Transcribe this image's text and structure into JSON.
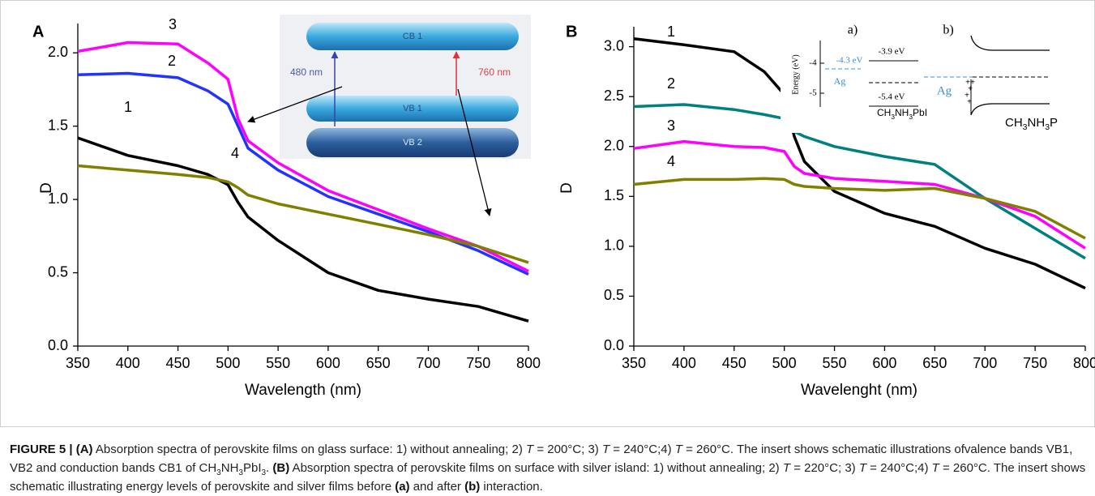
{
  "chart_data": [
    {
      "type": "line",
      "panel": "A",
      "xlabel": "Wavelength (nm)",
      "ylabel": "D",
      "x": [
        350,
        400,
        450,
        480,
        500,
        510,
        520,
        550,
        600,
        650,
        700,
        750,
        800
      ],
      "xlim": [
        350,
        800
      ],
      "xticks": [
        350,
        400,
        450,
        500,
        550,
        600,
        650,
        700,
        750,
        800
      ],
      "ylim": [
        0,
        2.2
      ],
      "yticks": [
        {
          "value": 0,
          "label": "0.0"
        },
        {
          "value": 0.5,
          "label": "0.5"
        },
        {
          "value": 1,
          "label": "1.0"
        },
        {
          "value": 1.5,
          "label": "1.5"
        },
        {
          "value": 2,
          "label": "2.0"
        }
      ],
      "series": [
        {
          "name": "1",
          "color": "#000000",
          "values": [
            1.42,
            1.3,
            1.23,
            1.17,
            1.1,
            0.98,
            0.88,
            0.72,
            0.5,
            0.38,
            0.32,
            0.27,
            0.17
          ]
        },
        {
          "name": "2",
          "color": "#2233ff",
          "values": [
            1.85,
            1.86,
            1.83,
            1.74,
            1.65,
            1.5,
            1.35,
            1.2,
            1.02,
            0.9,
            0.78,
            0.65,
            0.49
          ]
        },
        {
          "name": "3",
          "color": "#ff00ff",
          "values": [
            2.01,
            2.07,
            2.06,
            1.93,
            1.82,
            1.55,
            1.4,
            1.25,
            1.06,
            0.93,
            0.8,
            0.68,
            0.51
          ]
        },
        {
          "name": "4",
          "color": "#808000",
          "values": [
            1.23,
            1.2,
            1.17,
            1.15,
            1.12,
            1.08,
            1.03,
            0.97,
            0.9,
            0.83,
            0.76,
            0.68,
            0.57
          ]
        }
      ],
      "inset_texts": [
        "CB 1",
        "VB 1",
        "VB 2",
        "480 nm",
        "760 nm"
      ]
    },
    {
      "type": "line",
      "panel": "B",
      "xlabel": "Wavelenght (nm)",
      "ylabel": "D",
      "x": [
        350,
        400,
        450,
        480,
        500,
        510,
        520,
        550,
        600,
        650,
        700,
        750,
        800
      ],
      "xlim": [
        350,
        800
      ],
      "xticks": [
        350,
        400,
        450,
        500,
        550,
        600,
        650,
        700,
        750,
        800
      ],
      "ylim": [
        0,
        3.2
      ],
      "yticks": [
        {
          "value": 0,
          "label": "0.0"
        },
        {
          "value": 0.5,
          "label": "0.5"
        },
        {
          "value": 1,
          "label": "1.0"
        },
        {
          "value": 1.5,
          "label": "1.5"
        },
        {
          "value": 2,
          "label": "2.0"
        },
        {
          "value": 2.5,
          "label": "2.5"
        },
        {
          "value": 3,
          "label": "3.0"
        }
      ],
      "series": [
        {
          "name": "1",
          "color": "#000000",
          "values": [
            3.08,
            3.02,
            2.95,
            2.75,
            2.52,
            2.1,
            1.85,
            1.55,
            1.33,
            1.2,
            0.98,
            0.82,
            0.58
          ]
        },
        {
          "name": "2",
          "color": "#008080",
          "values": [
            2.4,
            2.42,
            2.37,
            2.32,
            2.28,
            2.15,
            2.1,
            2.0,
            1.9,
            1.82,
            1.48,
            1.18,
            0.88
          ]
        },
        {
          "name": "3",
          "color": "#ff00ff",
          "values": [
            1.98,
            2.05,
            2.0,
            1.99,
            1.95,
            1.8,
            1.73,
            1.68,
            1.65,
            1.62,
            1.48,
            1.3,
            0.98
          ]
        },
        {
          "name": "4",
          "color": "#808000",
          "values": [
            1.62,
            1.67,
            1.67,
            1.68,
            1.67,
            1.62,
            1.6,
            1.58,
            1.56,
            1.58,
            1.48,
            1.35,
            1.08
          ]
        }
      ],
      "inset_texts": [
        "a)",
        "b)",
        "Energy (eV)",
        "-4",
        "-5",
        "-4.3 eV",
        "Ag",
        "-3.9 eV",
        "-5.4 eV",
        [
          {
            "text": "CH"
          },
          {
            "text": "3",
            "style": "sub"
          },
          {
            "text": "NH"
          },
          {
            "text": "3",
            "style": "sub"
          },
          {
            "text": "PbI"
          }
        ],
        "Ag",
        [
          {
            "text": "CH"
          },
          {
            "text": "3",
            "style": "sub"
          },
          {
            "text": "NH"
          },
          {
            "text": "3",
            "style": "sub"
          },
          {
            "text": "P"
          }
        ]
      ]
    }
  ],
  "caption": [
    {
      "text": "FIGURE 5 | ",
      "style": "bold"
    },
    {
      "text": "(A)",
      "style": "bold"
    },
    {
      "text": " Absorption spectra of perovskite films on glass surface: 1) without annealing; 2) "
    },
    {
      "text": "T",
      "style": "italic"
    },
    {
      "text": " = 200°C; 3) "
    },
    {
      "text": "T",
      "style": "italic"
    },
    {
      "text": " = 240°C;4) "
    },
    {
      "text": "T",
      "style": "italic"
    },
    {
      "text": " = 260°C. The insert shows schematic illustrations ofvalence bands VB1, VB2 and conduction bands CB1 of CH"
    },
    {
      "text": "3",
      "style": "sub"
    },
    {
      "text": "NH"
    },
    {
      "text": "3",
      "style": "sub"
    },
    {
      "text": "PbI"
    },
    {
      "text": "3",
      "style": "sub"
    },
    {
      "text": ". "
    },
    {
      "text": "(B)",
      "style": "bold"
    },
    {
      "text": " Absorption spectra of perovskite films on surface with silver island: 1) without annealing; 2) "
    },
    {
      "text": "T",
      "style": "italic"
    },
    {
      "text": " = 220°C; 3) "
    },
    {
      "text": "T",
      "style": "italic"
    },
    {
      "text": " = 240°C;4) "
    },
    {
      "text": "T",
      "style": "italic"
    },
    {
      "text": " = 260°C. The insert shows schematic illustrating energy levels of perovskite and silver films before "
    },
    {
      "text": "(a)",
      "style": "bold"
    },
    {
      "text": " and after "
    },
    {
      "text": "(b)",
      "style": "bold"
    },
    {
      "text": " interaction."
    }
  ]
}
